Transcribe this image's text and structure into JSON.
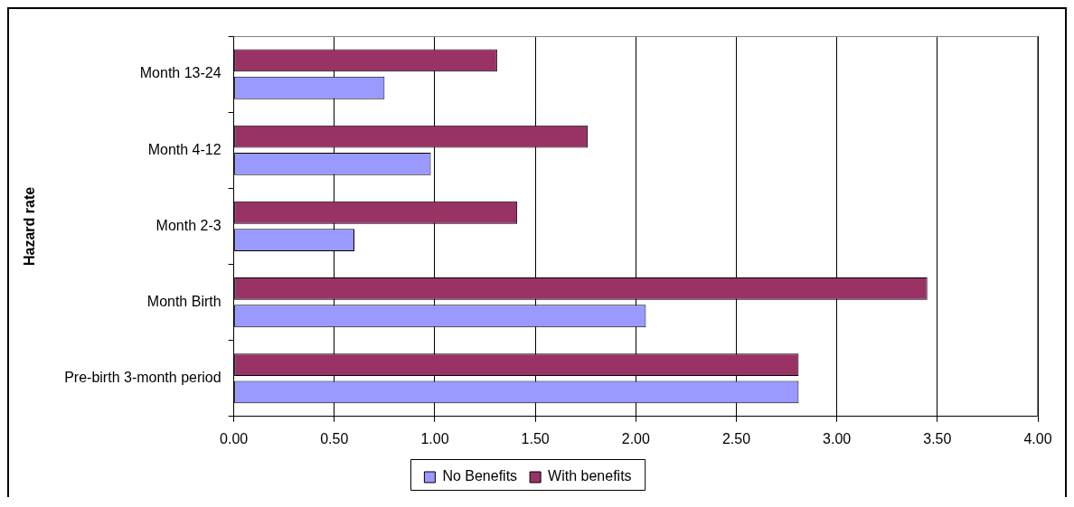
{
  "chart_data": {
    "type": "bar",
    "orientation": "horizontal",
    "ylabel": "Hazard rate",
    "categories": [
      "Month 13-24",
      "Month 4-12",
      "Month 2-3",
      "Month Birth",
      "Pre-birth 3-month period"
    ],
    "series": [
      {
        "name": "No Benefits",
        "color": "#9999ff",
        "values": [
          0.75,
          0.98,
          0.6,
          2.05,
          2.81
        ]
      },
      {
        "name": "With benefits",
        "color": "#993366",
        "values": [
          1.31,
          1.76,
          1.41,
          3.45,
          2.81
        ]
      }
    ],
    "xlim": [
      0,
      4
    ],
    "xticks": [
      {
        "value": 0,
        "label": "0.00"
      },
      {
        "value": 0.5,
        "label": "0.50"
      },
      {
        "value": 1,
        "label": "1.00"
      },
      {
        "value": 1.5,
        "label": "1.50"
      },
      {
        "value": 2,
        "label": "2.00"
      },
      {
        "value": 2.5,
        "label": "2.50"
      },
      {
        "value": 3,
        "label": "3.00"
      },
      {
        "value": 3.5,
        "label": "3.50"
      },
      {
        "value": 4,
        "label": "4.00"
      }
    ],
    "grid": "x",
    "legend": "bottom"
  }
}
